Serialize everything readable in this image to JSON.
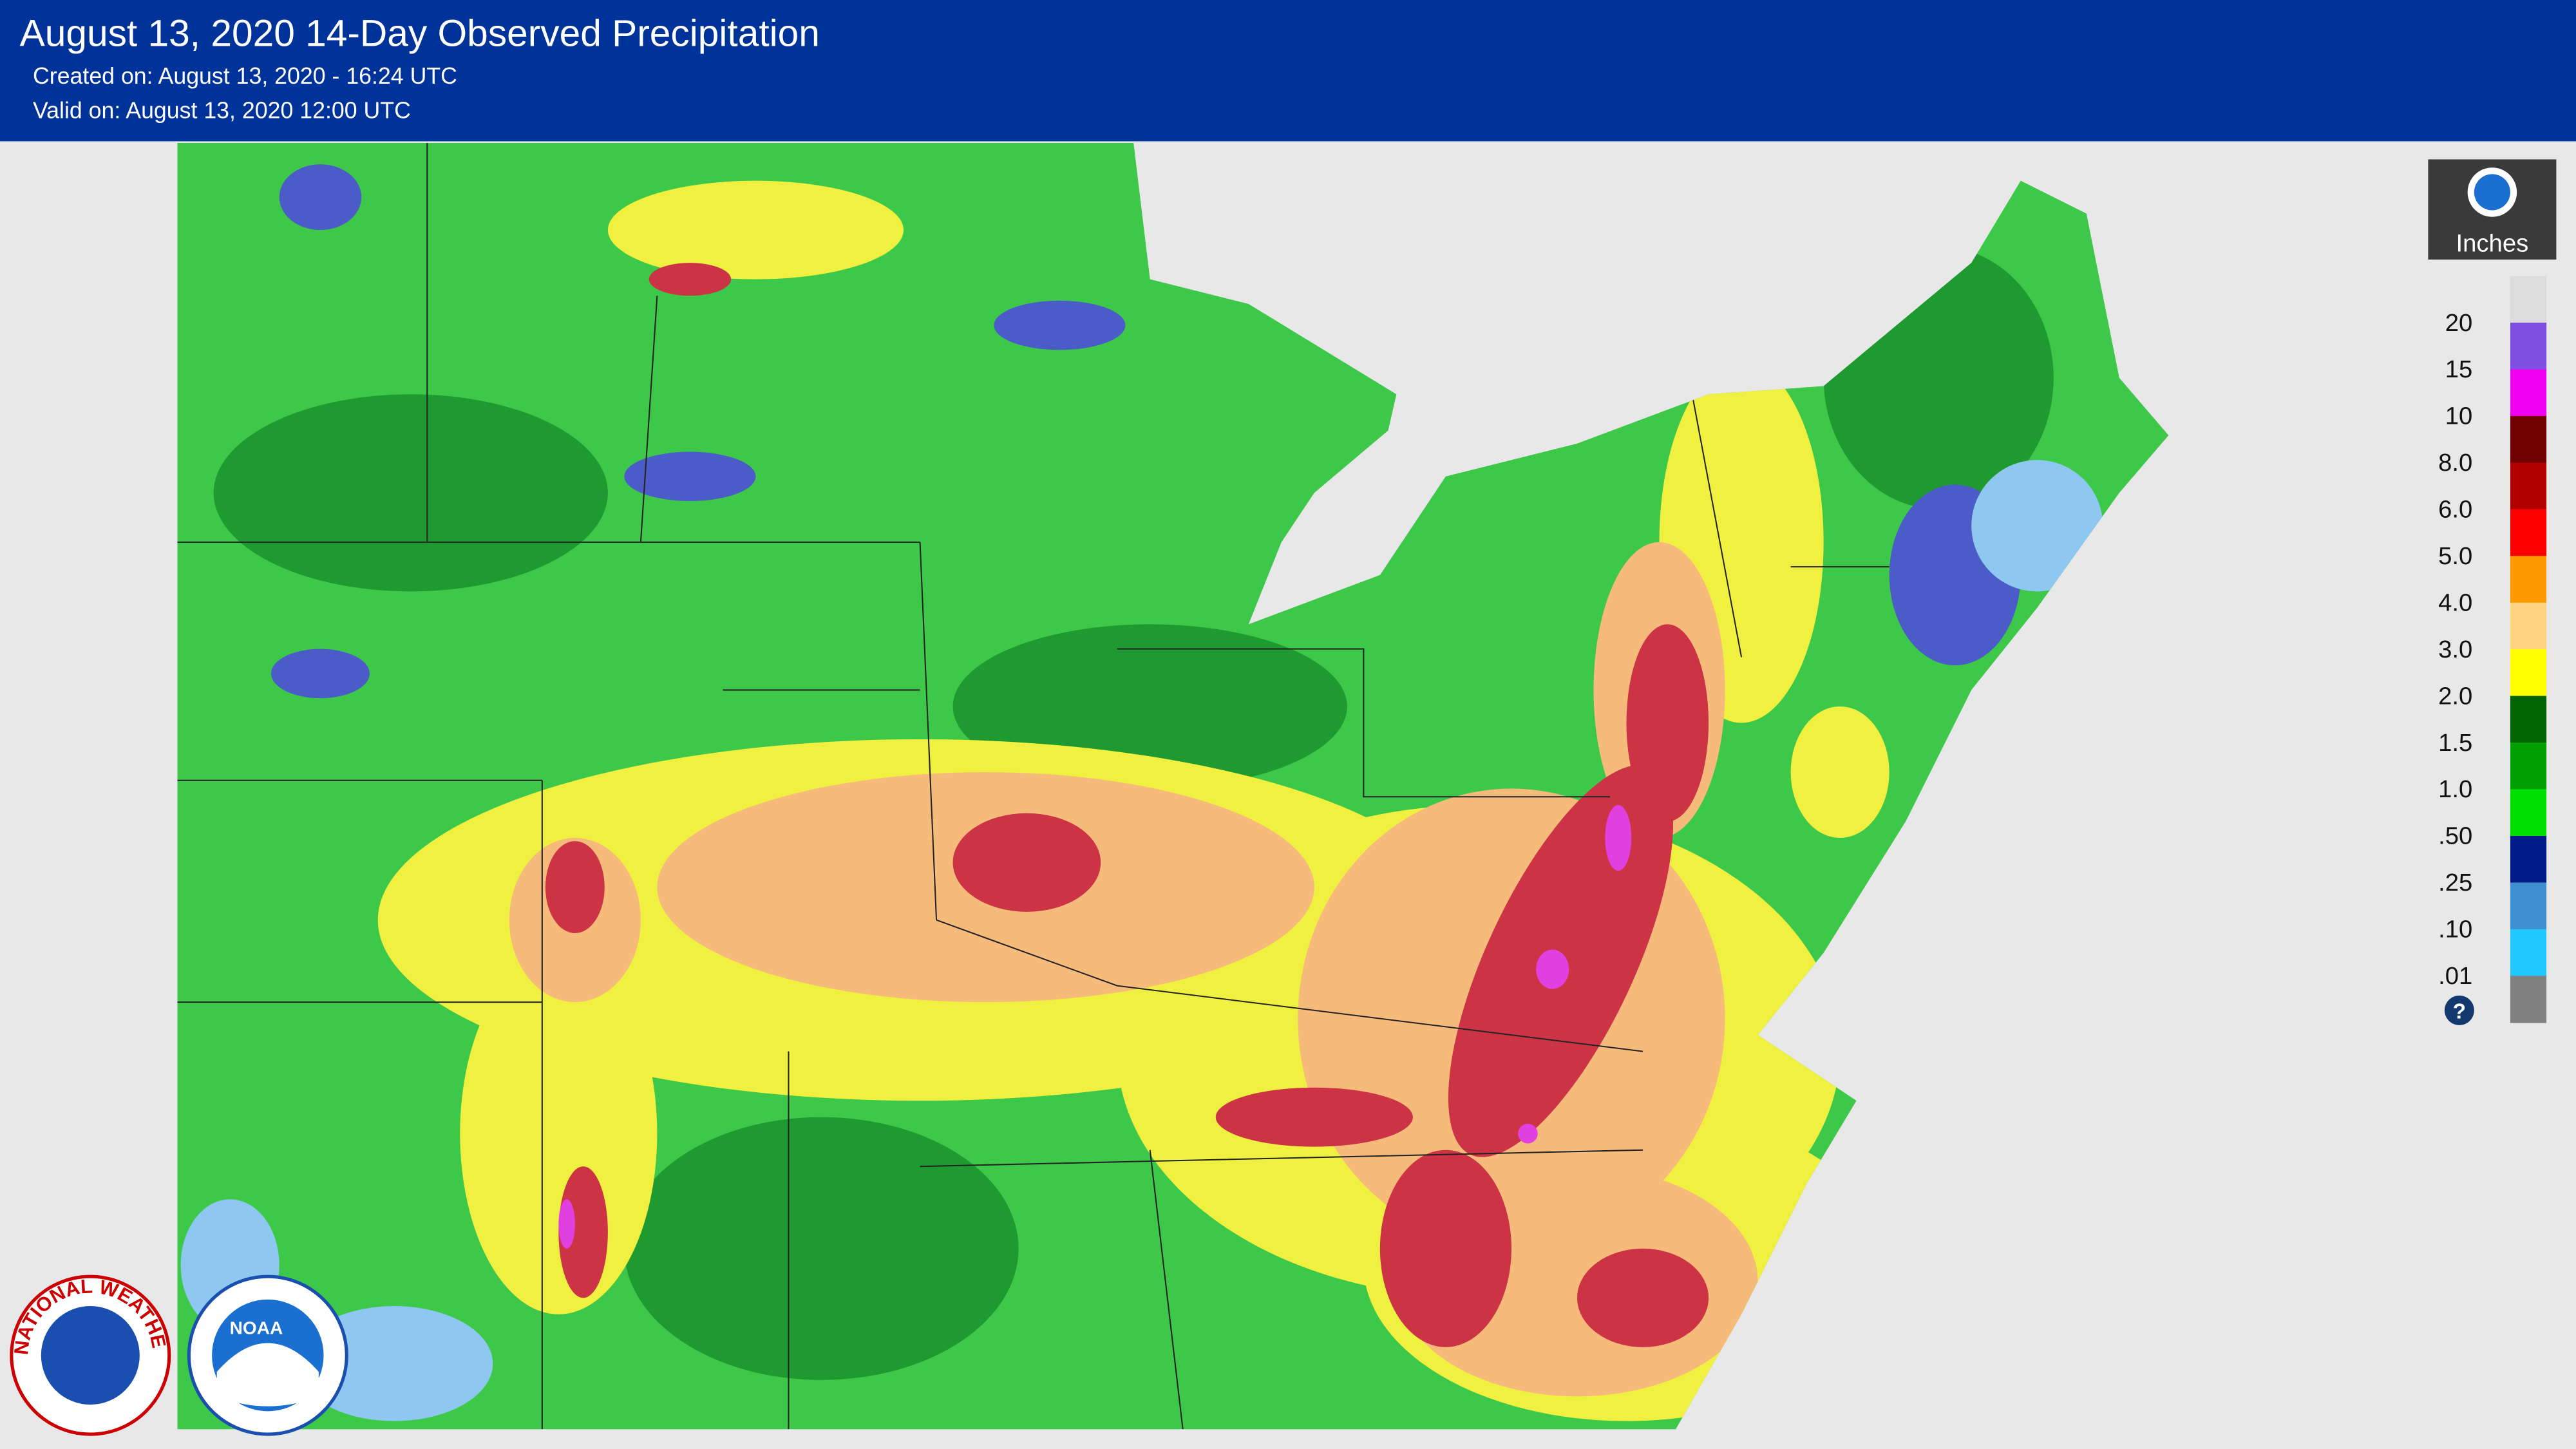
{
  "header": {
    "title": "August 13, 2020 14-Day Observed Precipitation",
    "created": "Created on: August 13, 2020 - 16:24 UTC",
    "valid": "Valid on: August 13, 2020 12:00 UTC"
  },
  "legend": {
    "title": "Inches",
    "labels": [
      "20",
      "15",
      "10",
      "8.0",
      "6.0",
      "5.0",
      "4.0",
      "3.0",
      "2.0",
      "1.5",
      "1.0",
      ".50",
      ".25",
      ".10",
      ".01"
    ],
    "colors": [
      "#dcdcdc",
      "#7e4fe0",
      "#f000f0",
      "#700000",
      "#b00000",
      "#ff0000",
      "#ff9900",
      "#ffd37f",
      "#ffff00",
      "#006400",
      "#00a000",
      "#00e000",
      "#001a8a",
      "#3f8fcf",
      "#1fc8ff",
      "#808080"
    ],
    "help": "?"
  },
  "logos": {
    "nws": "NATIONAL WEATHER SERVICE",
    "noaa": "NOAA",
    "noaa_badge": "NOAA"
  }
}
